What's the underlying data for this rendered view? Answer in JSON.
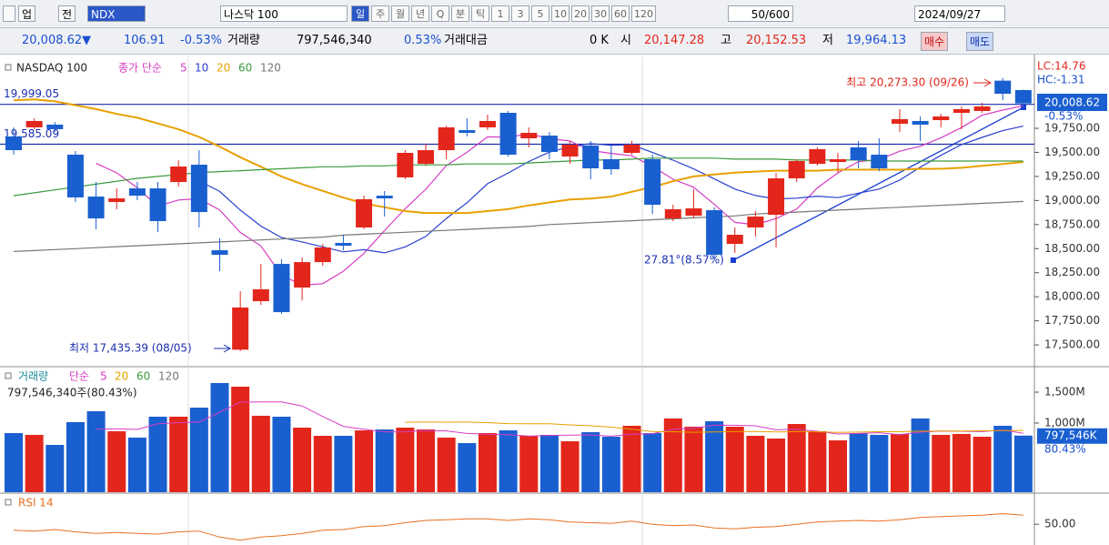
{
  "toolbar": {
    "market": "업",
    "prev": "전",
    "code": "NDX",
    "name": "나스닥 100",
    "periods": [
      "일",
      "주",
      "월",
      "년",
      "Q",
      "분",
      "틱",
      "1",
      "3",
      "5",
      "10",
      "20",
      "30",
      "60",
      "120"
    ],
    "count": "50/600",
    "date": "2024/09/27"
  },
  "quote": {
    "price": "20,008.62▼",
    "change": "106.91",
    "change_pct": "-0.53%",
    "volume_label": "거래량",
    "volume": "797,546,340",
    "volume_pct": "0.53%",
    "amount_label": "거래대금",
    "amount": "0 K",
    "open_label": "시",
    "open": "20,147.28",
    "high_label": "고",
    "high": "20,152.53",
    "low_label": "저",
    "low": "19,964.13",
    "buy": "매수",
    "sell": "매도"
  },
  "chart_data": {
    "type": "candlestick",
    "title": "NASDAQ 100",
    "ma_label": "종가 단순",
    "up_color": "#e3261b",
    "down_color": "#1a5fd0",
    "ylim": [
      17283,
      20497
    ],
    "yticks": [
      {
        "value": 17500,
        "label": "17,500.00"
      },
      {
        "value": 17750,
        "label": "17,750.00"
      },
      {
        "value": 18000,
        "label": "18,000.00"
      },
      {
        "value": 18250,
        "label": "18,250.00"
      },
      {
        "value": 18500,
        "label": "18,500.00"
      },
      {
        "value": 18750,
        "label": "18,750.00"
      },
      {
        "value": 19000,
        "label": "19,000.00"
      },
      {
        "value": 19250,
        "label": "19,250.00"
      },
      {
        "value": 19500,
        "label": "19,500.00"
      },
      {
        "value": 19750,
        "label": "19,750.00"
      }
    ],
    "open": [
      19665,
      19760,
      19788,
      19476,
      19041,
      18984,
      19126,
      19126,
      19192,
      19372,
      18483,
      17450,
      17954,
      18341,
      18096,
      18360,
      18559,
      18720,
      19050,
      19240,
      19381,
      19523,
      19731,
      19760,
      19911,
      19646,
      19674,
      19457,
      19570,
      19429,
      19495,
      19429,
      18814,
      18842,
      18899,
      18549,
      18720,
      18852,
      19230,
      19381,
      19400,
      19552,
      19476,
      19797,
      19826,
      19835,
      19911,
      19930,
      20245,
      20147.28
    ],
    "high": [
      19760,
      19854,
      19816,
      19514,
      19192,
      19126,
      19192,
      19192,
      19419,
      19523,
      18606,
      18058,
      18341,
      18389,
      18408,
      18549,
      18644,
      19050,
      19098,
      19523,
      19589,
      19778,
      19854,
      19892,
      19930,
      19760,
      19712,
      19618,
      19618,
      19570,
      19618,
      19476,
      18956,
      19117,
      18928,
      18720,
      18890,
      19287,
      19429,
      19552,
      19495,
      19618,
      19646,
      19949,
      19873,
      19901,
      19977,
      20015,
      20273.3,
      20152.53
    ],
    "low": [
      19476,
      19741,
      19712,
      18984,
      18701,
      18909,
      19003,
      18672,
      19145,
      18720,
      18266,
      17435.39,
      17916,
      17821,
      17963,
      18322,
      18483,
      18701,
      18833,
      19221,
      19362,
      19429,
      19665,
      19731,
      19457,
      19552,
      19429,
      19381,
      19221,
      19268,
      19476,
      18861,
      18786,
      18814,
      18389,
      18455,
      18625,
      18512,
      19192,
      19362,
      19287,
      19334,
      19306,
      19712,
      19618,
      19760,
      19741,
      19911,
      20043,
      19964.13
    ],
    "close": [
      19523,
      19826,
      19741,
      19032,
      18814,
      19022,
      19050,
      18786,
      19353,
      18880,
      18436,
      17888,
      18077,
      17840,
      18360,
      18512,
      18530,
      19013,
      19022,
      19495,
      19523,
      19760,
      19703,
      19826,
      19476,
      19703,
      19504,
      19580,
      19334,
      19325,
      19580,
      18956,
      18909,
      18918,
      18436,
      18644,
      18833,
      19230,
      19410,
      19533,
      19429,
      19419,
      19334,
      19845,
      19788,
      19873,
      19949,
      19977,
      20109,
      20008.62
    ],
    "ma_lines": [
      {
        "period": 5,
        "color": "#d63cc4"
      },
      {
        "period": 10,
        "color": "#2a3fd0"
      },
      {
        "period": 20,
        "color": "#e8a000",
        "values": [
          20040,
          20050,
          20030,
          19990,
          19950,
          19900,
          19860,
          19800,
          19740,
          19660,
          19560,
          19450,
          19350,
          19250,
          19170,
          19100,
          19030,
          18970,
          18930,
          18890,
          18870,
          18870,
          18870,
          18890,
          18910,
          18950,
          18980,
          19010,
          19020,
          19040,
          19090,
          19140,
          19200,
          19250,
          19270,
          19290,
          19300,
          19310,
          19310,
          19310,
          19320,
          19320,
          19320,
          19320,
          19330,
          19330,
          19340,
          19360,
          19380,
          19400
        ]
      },
      {
        "period": 60,
        "color": "#3a9a3a",
        "values": [
          19050,
          19080,
          19110,
          19140,
          19170,
          19200,
          19230,
          19250,
          19270,
          19290,
          19300,
          19310,
          19320,
          19330,
          19340,
          19350,
          19350,
          19360,
          19360,
          19370,
          19370,
          19370,
          19380,
          19380,
          19380,
          19390,
          19400,
          19410,
          19420,
          19420,
          19430,
          19440,
          19440,
          19440,
          19440,
          19430,
          19430,
          19430,
          19420,
          19420,
          19420,
          19420,
          19410,
          19410,
          19410,
          19410,
          19410,
          19410,
          19410,
          19410
        ]
      },
      {
        "period": 120,
        "color": "#777777",
        "values": [
          18470,
          18480,
          18490,
          18500,
          18510,
          18520,
          18530,
          18540,
          18550,
          18560,
          18570,
          18580,
          18590,
          18600,
          18610,
          18620,
          18640,
          18650,
          18660,
          18670,
          18680,
          18690,
          18700,
          18710,
          18720,
          18730,
          18750,
          18760,
          18770,
          18780,
          18790,
          18800,
          18810,
          18820,
          18830,
          18840,
          18860,
          18870,
          18880,
          18890,
          18900,
          18910,
          18920,
          18930,
          18940,
          18950,
          18960,
          18970,
          18980,
          18990
        ]
      }
    ],
    "hlines": [
      {
        "value": 19999.05,
        "label": "19,999.05"
      },
      {
        "value": 19585.09,
        "label": "19,585.09"
      }
    ],
    "annotations": {
      "high": "최고 20,273.30 (09/26)",
      "low": "최저 17,435.39 (08/05)",
      "trend": "27.81°(8.57%)",
      "lc": "LC:14.76",
      "hc": "HC:-1.31",
      "last": "20,008.62",
      "last_pct": "-0.53%"
    },
    "volume": {
      "title": "거래량",
      "ma_label": "단순",
      "info": "797,546,340주(80.43%)",
      "ylim": [
        -118,
        1897
      ],
      "yticks": [
        {
          "value": 1500,
          "label": "1,500M"
        },
        {
          "value": 1000,
          "label": "1,000M"
        }
      ],
      "values": [
        838,
        809,
        647,
        1015,
        1191,
        868,
        765,
        1103,
        1103,
        1250,
        1647,
        1588,
        1118,
        1103,
        926,
        794,
        794,
        882,
        897,
        926,
        897,
        765,
        676,
        838,
        882,
        794,
        809,
        706,
        853,
        779,
        956,
        838,
        1074,
        941,
        1029,
        941,
        794,
        750,
        985,
        868,
        721,
        838,
        809,
        824,
        1074,
        809,
        824,
        779,
        956,
        797.546
      ],
      "ma_lines": [
        {
          "period": 5,
          "color": "#d63cc4"
        },
        {
          "period": 20,
          "color": "#e8a000"
        },
        {
          "period": 60,
          "color": "#3a9a3a"
        },
        {
          "period": 120,
          "color": "#777777"
        }
      ],
      "last_label": "797,546K",
      "last_pct": "80.43%"
    },
    "rsi": {
      "title": "RSI 14",
      "color": "#e87020",
      "ylim": [
        25,
        85
      ],
      "yticks": [
        {
          "value": 50,
          "label": "50.00"
        }
      ],
      "values": [
        42,
        41,
        43,
        40,
        38,
        39,
        38,
        37,
        40,
        41,
        33,
        29,
        33,
        35,
        38,
        42,
        43,
        47,
        48,
        52,
        55,
        56,
        57,
        57,
        55,
        57,
        56,
        53,
        52,
        51,
        54,
        50,
        48,
        49,
        45,
        44,
        46,
        47,
        50,
        53,
        54,
        55,
        54,
        56,
        59,
        60,
        61,
        62,
        64,
        62
      ]
    }
  }
}
